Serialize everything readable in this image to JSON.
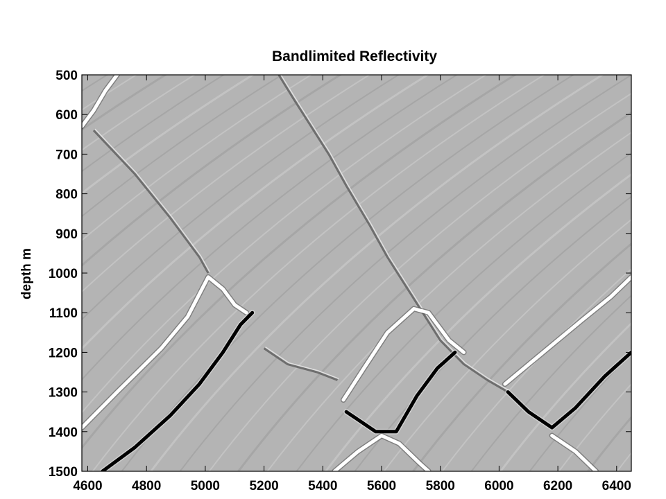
{
  "chart_data": {
    "type": "heatmap",
    "title": "Bandlimited Reflectivity",
    "xlabel": "",
    "ylabel": "depth m",
    "xlim": [
      4580,
      6450
    ],
    "ylim": [
      1500,
      500
    ],
    "y_reversed": true,
    "colormap": "gray",
    "background_value_color": "#b4b4b4",
    "x_ticks": [
      4600,
      4800,
      5000,
      5200,
      5400,
      5600,
      5800,
      6000,
      6200,
      6400
    ],
    "y_ticks": [
      500,
      600,
      700,
      800,
      900,
      1000,
      1100,
      1200,
      1300,
      1400,
      1500
    ],
    "x_tick_labels": [
      "4600",
      "4800",
      "5000",
      "5200",
      "5400",
      "5600",
      "5800",
      "6000",
      "6200",
      "6400"
    ],
    "y_tick_labels": [
      "500",
      "600",
      "700",
      "800",
      "900",
      "1000",
      "1100",
      "1200",
      "1300",
      "1400",
      "1500"
    ],
    "strong_reflectors": [
      {
        "polarity": "positive",
        "points": [
          [
            4580,
            1390
          ],
          [
            4700,
            1300
          ],
          [
            4850,
            1190
          ],
          [
            4940,
            1110
          ],
          [
            5010,
            1010
          ],
          [
            5060,
            1040
          ],
          [
            5100,
            1080
          ],
          [
            5140,
            1100
          ]
        ]
      },
      {
        "polarity": "negative",
        "points": [
          [
            4650,
            1500
          ],
          [
            4760,
            1440
          ],
          [
            4880,
            1360
          ],
          [
            4980,
            1280
          ],
          [
            5060,
            1200
          ],
          [
            5120,
            1130
          ],
          [
            5160,
            1100
          ]
        ]
      },
      {
        "polarity": "positive",
        "points": [
          [
            5470,
            1320
          ],
          [
            5540,
            1240
          ],
          [
            5620,
            1150
          ],
          [
            5710,
            1090
          ],
          [
            5760,
            1100
          ],
          [
            5830,
            1170
          ],
          [
            5880,
            1200
          ]
        ]
      },
      {
        "polarity": "negative",
        "points": [
          [
            5480,
            1350
          ],
          [
            5580,
            1400
          ],
          [
            5650,
            1400
          ],
          [
            5720,
            1310
          ],
          [
            5790,
            1240
          ],
          [
            5850,
            1200
          ]
        ]
      },
      {
        "polarity": "positive",
        "points": [
          [
            6020,
            1280
          ],
          [
            6150,
            1200
          ],
          [
            6280,
            1120
          ],
          [
            6380,
            1060
          ],
          [
            6450,
            1010
          ]
        ]
      },
      {
        "polarity": "negative",
        "points": [
          [
            6030,
            1300
          ],
          [
            6100,
            1350
          ],
          [
            6180,
            1390
          ],
          [
            6260,
            1340
          ],
          [
            6360,
            1260
          ],
          [
            6450,
            1200
          ]
        ]
      },
      {
        "polarity": "positive",
        "points": [
          [
            4580,
            630
          ],
          [
            4620,
            590
          ],
          [
            4660,
            540
          ],
          [
            4700,
            500
          ]
        ]
      },
      {
        "polarity": "positive",
        "points": [
          [
            5440,
            1500
          ],
          [
            5520,
            1450
          ],
          [
            5600,
            1410
          ],
          [
            5660,
            1430
          ],
          [
            5730,
            1480
          ],
          [
            5760,
            1500
          ]
        ]
      },
      {
        "polarity": "positive",
        "points": [
          [
            6180,
            1410
          ],
          [
            6260,
            1450
          ],
          [
            6330,
            1500
          ]
        ]
      }
    ],
    "faults": [
      {
        "points": [
          [
            4620,
            640
          ],
          [
            4760,
            750
          ],
          [
            4880,
            860
          ],
          [
            4980,
            960
          ],
          [
            5010,
            1000
          ]
        ]
      },
      {
        "points": [
          [
            5250,
            500
          ],
          [
            5300,
            560
          ],
          [
            5360,
            630
          ],
          [
            5420,
            700
          ],
          [
            5480,
            780
          ],
          [
            5560,
            880
          ],
          [
            5620,
            960
          ],
          [
            5680,
            1030
          ],
          [
            5740,
            1100
          ],
          [
            5800,
            1170
          ],
          [
            5880,
            1230
          ],
          [
            5960,
            1270
          ],
          [
            6030,
            1300
          ]
        ]
      },
      {
        "points": [
          [
            5200,
            1190
          ],
          [
            5280,
            1230
          ],
          [
            5380,
            1250
          ],
          [
            5450,
            1270
          ]
        ]
      }
    ]
  }
}
